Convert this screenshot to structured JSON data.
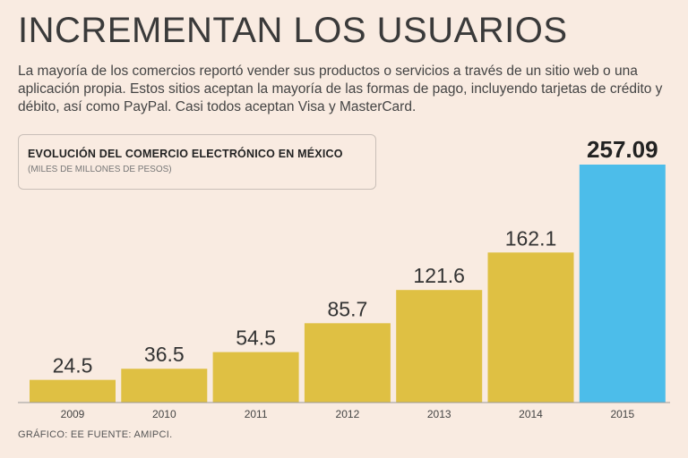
{
  "header": {
    "title": "INCREMENTAN LOS USUARIOS",
    "intro": "La mayoría de los comercios reportó vender sus productos o servicios a través de un sitio web o una aplicación propia. Estos sitios aceptan la mayoría de las formas de pago, incluyendo tarjetas de crédito y débito, así como PayPal. Casi todos aceptan Visa y MasterCard."
  },
  "chart_data": {
    "type": "bar",
    "title": "EVOLUCIÓN DEL COMERCIO ELECTRÓNICO EN MÉXICO",
    "subtitle": "(MILES DE MILLONES DE PESOS)",
    "categories": [
      "2009",
      "2010",
      "2011",
      "2012",
      "2013",
      "2014",
      "2015"
    ],
    "values": [
      24.5,
      36.5,
      54.5,
      85.7,
      121.6,
      162.1,
      257.09
    ],
    "value_labels": [
      "24.5",
      "36.5",
      "54.5",
      "85.7",
      "121.6",
      "162.1",
      "257.09"
    ],
    "highlight_index": 6,
    "bar_color": "#dfc043",
    "highlight_color": "#4cbdea",
    "ylim": [
      0,
      257.09
    ],
    "grid": false,
    "legend": "none"
  },
  "footer": {
    "source": "GRÁFICO: EE  FUENTE: AMIPCI."
  }
}
